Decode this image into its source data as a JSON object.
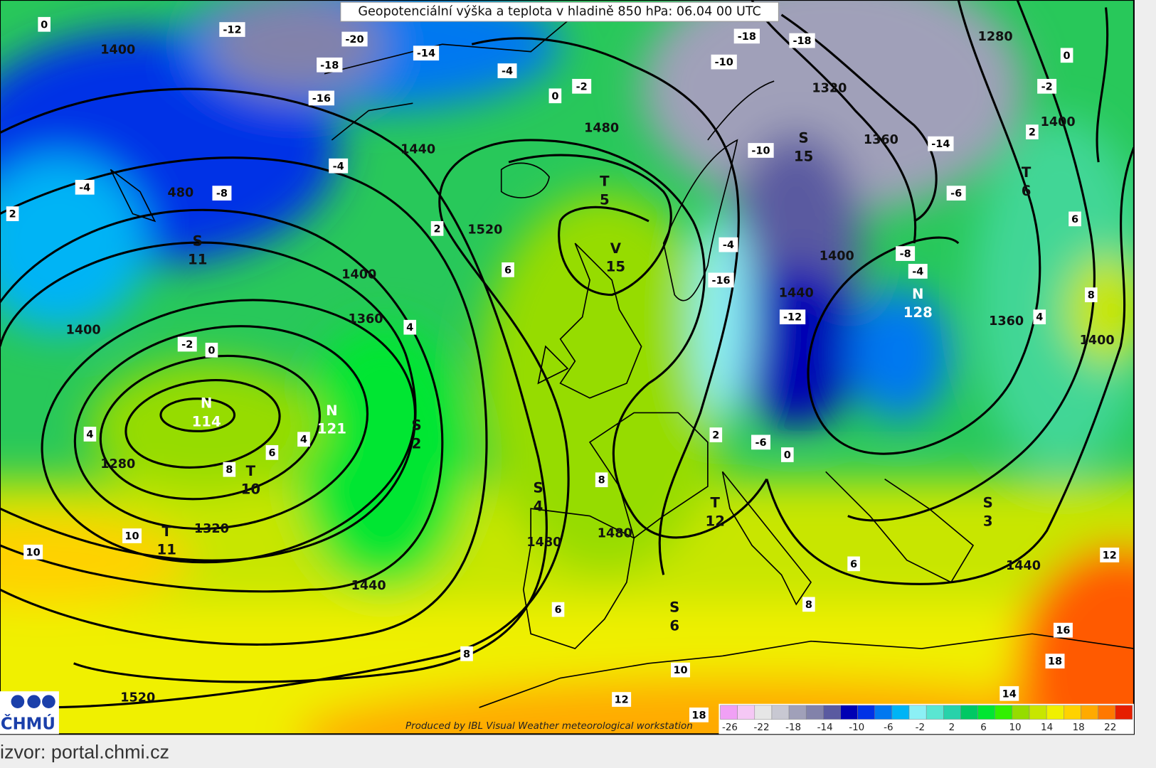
{
  "title": "Geopotenciální výška a teplota v hladině 850 hPa: 06.04 00 UTC",
  "height_labels": [
    "1400",
    "1440",
    "1480",
    "1520",
    "1400",
    "1360",
    "1400",
    "1280",
    "1320",
    "1440",
    "1520",
    "1480",
    "1480",
    "1360",
    "1320",
    "1280",
    "1400",
    "1400",
    "1440",
    "1360",
    "1400",
    "1440",
    "480"
  ],
  "temperature_labels": [
    "0",
    "-12",
    "-18",
    "-16",
    "-20",
    "-14",
    "-4",
    "0",
    "-2",
    "-18",
    "-18",
    "-10",
    "-10",
    "-14",
    "0",
    "-2",
    "2",
    "-6",
    "6",
    "8",
    "4",
    "-8",
    "-4",
    "-4",
    "-16",
    "-12",
    "-8",
    "-4",
    "2",
    "-4",
    "2",
    "6",
    "4",
    "-2",
    "0",
    "4",
    "6",
    "8",
    "4",
    "10",
    "10",
    "8",
    "6",
    "8",
    "2",
    "-6",
    "0",
    "6",
    "8",
    "10",
    "12",
    "18",
    "14",
    "18",
    "16",
    "12"
  ],
  "pressure_centers": [
    {
      "letter": "N",
      "value": "114"
    },
    {
      "letter": "N",
      "value": "121"
    },
    {
      "letter": "T",
      "value": "10"
    },
    {
      "letter": "T",
      "value": "11"
    },
    {
      "letter": "S",
      "value": "11"
    },
    {
      "letter": "S",
      "value": "2"
    },
    {
      "letter": "S",
      "value": "4"
    },
    {
      "letter": "S",
      "value": "6"
    },
    {
      "letter": "T",
      "value": "5"
    },
    {
      "letter": "V",
      "value": "15"
    },
    {
      "letter": "S",
      "value": "15"
    },
    {
      "letter": "N",
      "value": "128"
    },
    {
      "letter": "S",
      "value": "3"
    },
    {
      "letter": "T",
      "value": "12"
    },
    {
      "letter": "T",
      "value": "6"
    }
  ],
  "legend": {
    "colors": [
      "#f0a0f5",
      "#f5c8f5",
      "#e6e6e6",
      "#c8c8d2",
      "#a0a0b9",
      "#8282aa",
      "#5a5aa0",
      "#0000b4",
      "#0032e6",
      "#0078f0",
      "#00b4f5",
      "#8cf0f5",
      "#5ae6d2",
      "#28d2aa",
      "#00c864",
      "#00e632",
      "#32f000",
      "#96dc00",
      "#c8e600",
      "#f0f000",
      "#ffd200",
      "#ffaa00",
      "#ff7800",
      "#e61e00"
    ],
    "labels": [
      "-26",
      "-22",
      "-18",
      "-14",
      "-10",
      "-6",
      "-2",
      "2",
      "6",
      "10",
      "14",
      "18",
      "22"
    ]
  },
  "credit": "Produced by IBL Visual Weather meteorological workstation",
  "logo": "ČHMÚ",
  "source": "izvor: portal.chmi.cz"
}
